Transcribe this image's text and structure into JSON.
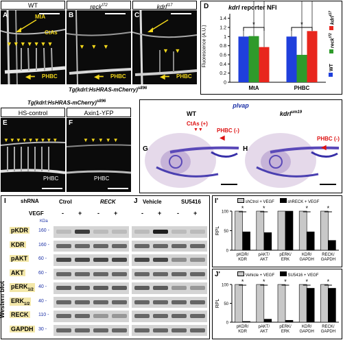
{
  "top": {
    "panels": [
      {
        "letter": "A",
        "title": "WT"
      },
      {
        "letter": "B",
        "title": "reck",
        "sup": "t72"
      },
      {
        "letter": "C",
        "title": "kdrl",
        "sup": "t17"
      }
    ],
    "labels": {
      "mta": "MtA",
      "ctas": "CtAs",
      "phbc": "PHBC"
    },
    "caption": "Tg(kdrl:HsHRAS-mCherry)",
    "caption_sup": "s896"
  },
  "panelD": {
    "letter": "D",
    "title_a": "kdrl",
    "title_b": " reporter NFI",
    "ylabel": "Fluorescence (A.U.)",
    "legend": [
      {
        "gene": "kdrl",
        "sup": "t17",
        "color": "#e8261d"
      },
      {
        "gene": "reck",
        "sup": "t72",
        "color": "#2f9a2b"
      },
      {
        "gene": "WT",
        "sup": "",
        "color": "#1f3fdc"
      }
    ],
    "star": "*"
  },
  "chart_data": [
    {
      "type": "bar",
      "title": "kdrl reporter NFI",
      "ylabel": "Fluorescence (A.U.)",
      "categories": [
        "MtA",
        "PHBC"
      ],
      "ylim": [
        0,
        1.5
      ],
      "yticks": [
        0,
        0.2,
        0.4,
        0.6,
        0.8,
        1,
        1.2,
        1.4
      ],
      "series": [
        {
          "name": "WT",
          "values": [
            1.0,
            1.0
          ],
          "color": "#1f3fdc"
        },
        {
          "name": "reck t72",
          "values": [
            1.01,
            0.6
          ],
          "color": "#2f9a2b"
        },
        {
          "name": "kdrl t17",
          "values": [
            0.77,
            1.12
          ],
          "color": "#e8261d"
        }
      ]
    },
    {
      "type": "bar",
      "categories": [
        "pKDR/ KDR",
        "pAKT/ AKT",
        "pERK/ ERK",
        "KDR/ GAPDH",
        "RECK/ GAPDH"
      ],
      "ylabel": "RPL",
      "ylim": [
        0,
        100
      ],
      "yticks": [
        0,
        50,
        100
      ],
      "series": [
        {
          "name": "shCtrol + VEGF",
          "values": [
            100,
            100,
            100,
            100,
            100
          ],
          "color": "#c8c8c8"
        },
        {
          "name": "shRECK + VEGF",
          "values": [
            47,
            45,
            100,
            47,
            25
          ],
          "color": "#000000"
        }
      ]
    },
    {
      "type": "bar",
      "categories": [
        "pKDR/ KDR",
        "pAKT/ AKT",
        "pERK/ ERK",
        "KDR/ GAPDH",
        "RECK/ GAPDH"
      ],
      "ylabel": "RPL",
      "ylim": [
        0,
        100
      ],
      "yticks": [
        0,
        50,
        100
      ],
      "series": [
        {
          "name": "Vehicle + VEGF",
          "values": [
            100,
            100,
            100,
            100,
            100
          ],
          "color": "#c8c8c8"
        },
        {
          "name": "SU5416 + VEGF",
          "values": [
            2,
            8,
            5,
            90,
            90
          ],
          "color": "#000000"
        }
      ]
    }
  ],
  "mid": {
    "caption": "Tg(kdrl:HsHRAS-mCherry)",
    "caption_sup": "s896",
    "panels": [
      {
        "letter": "E",
        "title": "HS-control"
      },
      {
        "letter": "F",
        "title": "Axin1-YFP"
      }
    ],
    "phbc": "PHBC"
  },
  "insitu": {
    "title": "plvap",
    "panels": [
      {
        "letter": "G",
        "title": "WT",
        "ctas": "CtAs (+)",
        "phbc": "PHBC (-)"
      },
      {
        "letter": "H",
        "title": "kdrl",
        "sup": "um19",
        "phbc": "PHBC (-)"
      }
    ]
  },
  "western": {
    "I": "I",
    "J": "J",
    "shrna": "shRNA",
    "vegf": "VEGF",
    "ctrol": "Ctrol",
    "reck": "RECK",
    "vehicle": "Vehicle",
    "su": "SU5416",
    "kda": "KDa",
    "side": "Western blot",
    "treat": [
      "-",
      "+",
      "-",
      "+"
    ],
    "rows": [
      {
        "name": "pKDR",
        "kda": "160"
      },
      {
        "name": "KDR",
        "kda": "160"
      },
      {
        "name": "pAKT",
        "kda": "60"
      },
      {
        "name": "AKT",
        "kda": "60"
      },
      {
        "name": "pERK",
        "sub": "1/2",
        "kda": "40"
      },
      {
        "name": "ERK",
        "sub": "1/2",
        "kda": "40"
      },
      {
        "name": "RECK",
        "kda": "110"
      },
      {
        "name": "GAPDH",
        "kda": "30"
      }
    ]
  },
  "quant": {
    "I2": "I'",
    "J2": "J'",
    "legend_I": [
      "shCtrol + VEGF",
      "shRECK + VEGF"
    ],
    "legend_J": [
      "Vehicle + VEGF",
      "SU5416 + VEGF"
    ],
    "ylabel": "RPL",
    "cats": [
      "pKDR/ KDR",
      "pAKT/ AKT",
      "pERK/ ERK",
      "KDR/ GAPDH",
      "RECK/ GAPDH"
    ],
    "star": "*"
  }
}
